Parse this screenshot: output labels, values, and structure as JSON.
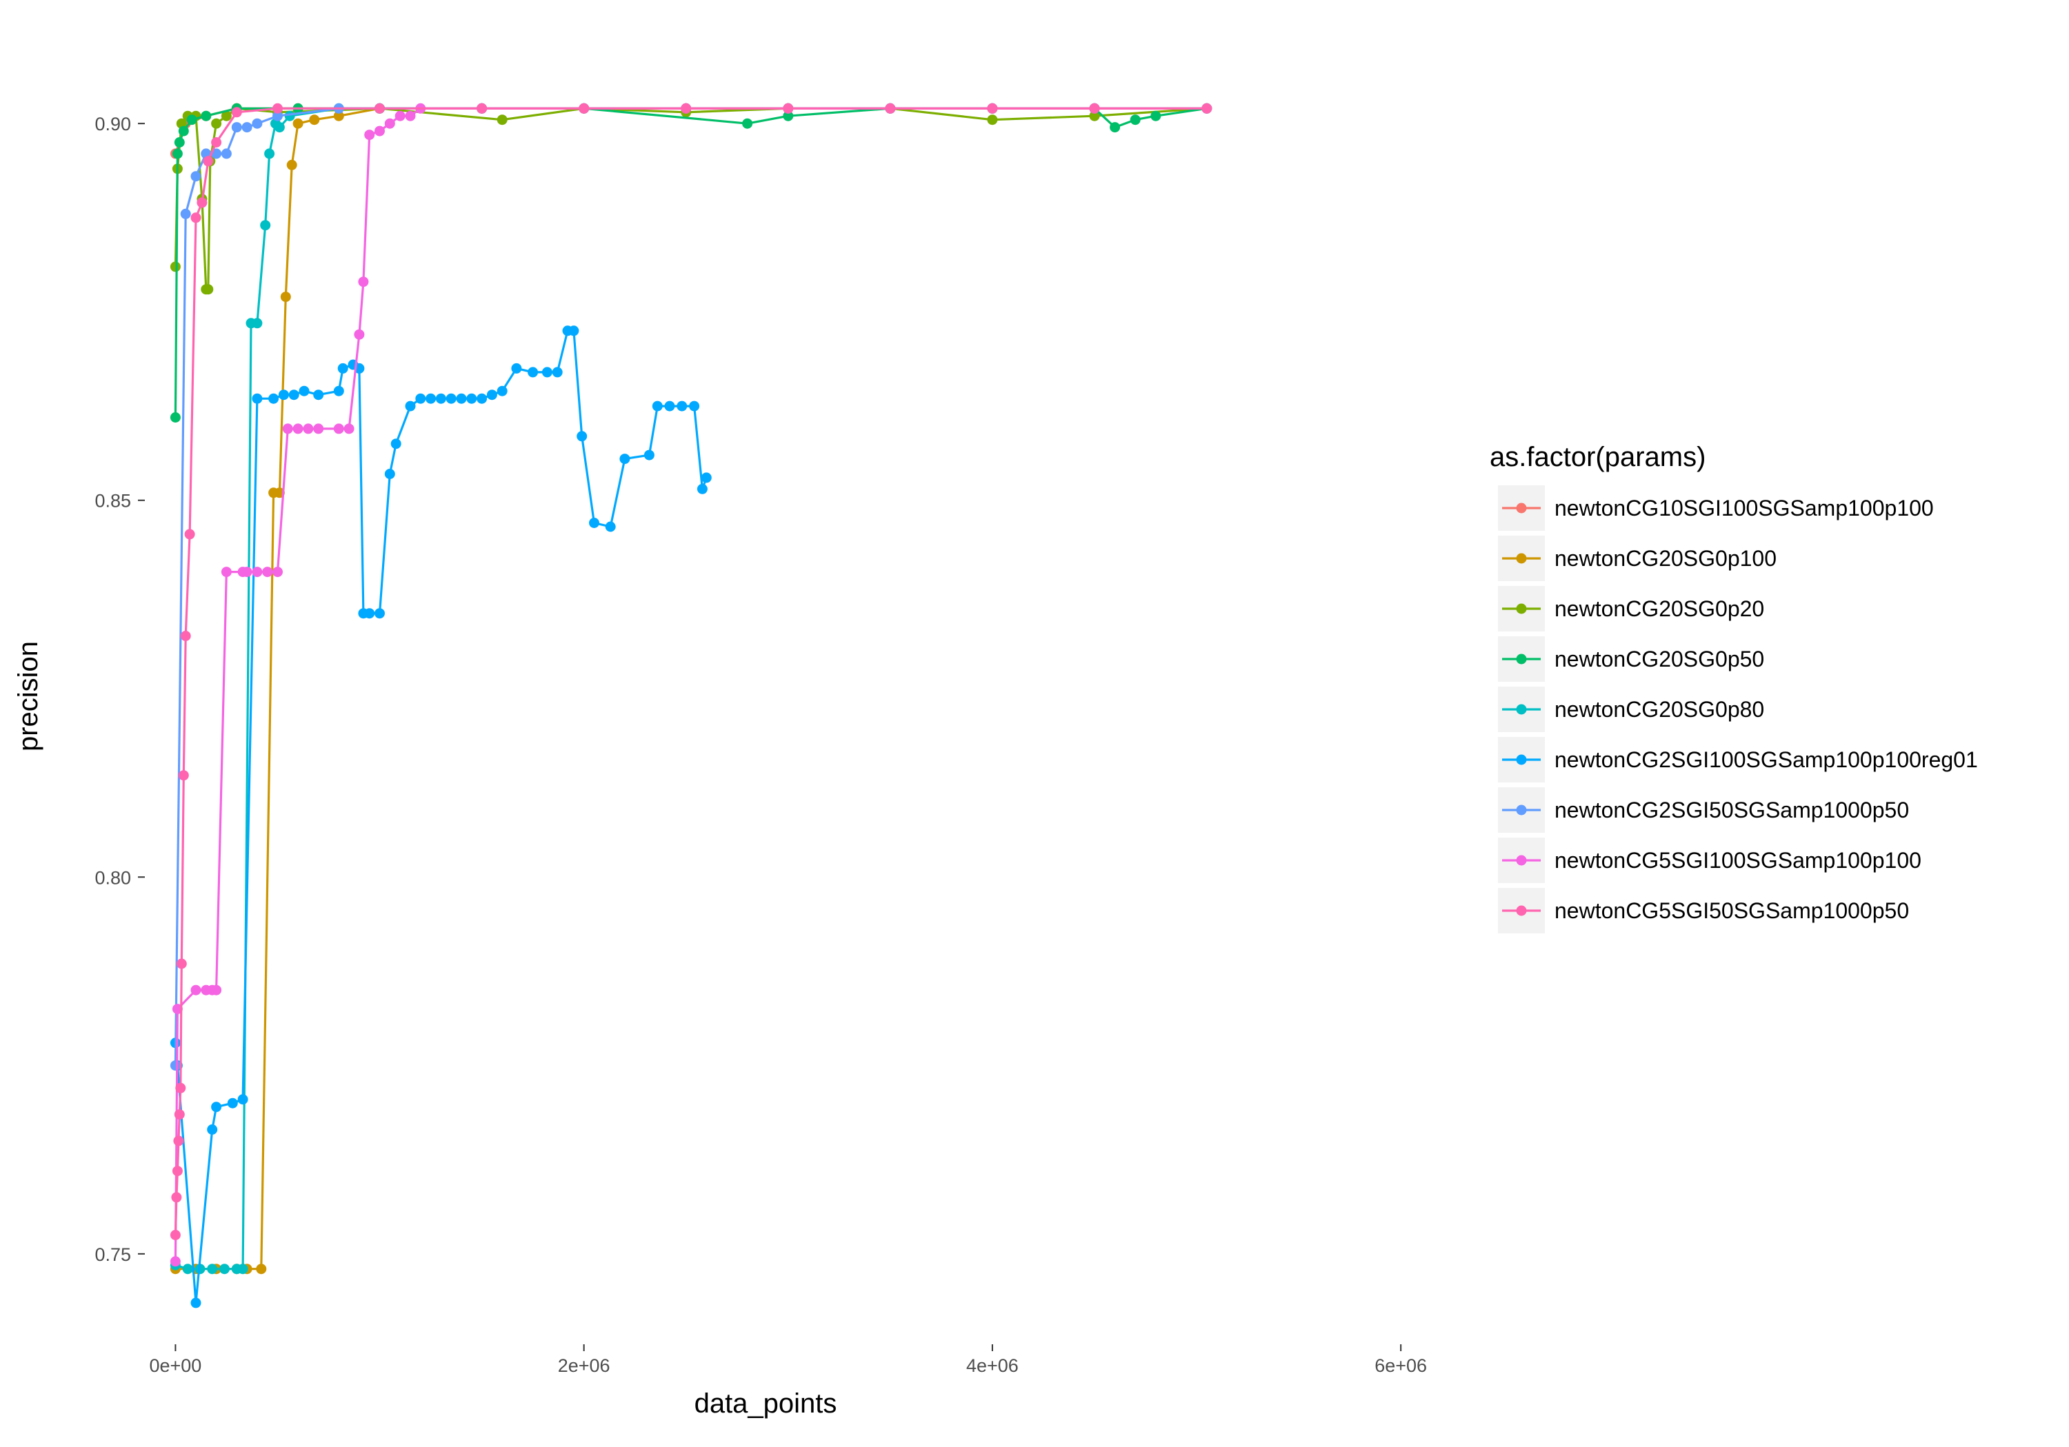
{
  "chart_data": {
    "type": "line",
    "xlabel": "data_points",
    "ylabel": "precision",
    "xlim": [
      -150000,
      6300000
    ],
    "ylim": [
      0.738,
      0.912
    ],
    "xticks": [
      0,
      2000000,
      4000000,
      6000000
    ],
    "xtick_labels": [
      "0e+00",
      "2e+06",
      "4e+06",
      "6e+06"
    ],
    "yticks": [
      0.75,
      0.8,
      0.85,
      0.9
    ],
    "ytick_labels": [
      "0.75",
      "0.80",
      "0.85",
      "0.90"
    ],
    "grid": false,
    "legend": {
      "title": "as.factor(params)",
      "position": "right"
    },
    "series": [
      {
        "name": "newtonCG10SGI100SGSamp100p100",
        "color": "#F8766D",
        "x": [
          0,
          50000,
          150000,
          300000,
          600000,
          1000000,
          1500000,
          2000000,
          2500000,
          3000000,
          3500000,
          4000000,
          4500000,
          5050000
        ],
        "y": [
          0.896,
          0.9,
          0.901,
          0.902,
          0.902,
          0.902,
          0.902,
          0.902,
          0.902,
          0.902,
          0.902,
          0.902,
          0.902,
          0.902
        ]
      },
      {
        "name": "newtonCG20SG0p100",
        "color": "#CD9600",
        "x": [
          0,
          100000,
          200000,
          300000,
          350000,
          420000,
          480000,
          510000,
          540000,
          570000,
          600000,
          680000,
          800000,
          1000000,
          1500000,
          2000000,
          2500000,
          3000000,
          3500000,
          4000000,
          4500000,
          5050000
        ],
        "y": [
          0.748,
          0.748,
          0.748,
          0.748,
          0.748,
          0.748,
          0.851,
          0.851,
          0.877,
          0.8945,
          0.9,
          0.9005,
          0.901,
          0.902,
          0.902,
          0.902,
          0.902,
          0.902,
          0.902,
          0.902,
          0.902,
          0.902
        ]
      },
      {
        "name": "newtonCG20SG0p20",
        "color": "#7CAE00",
        "x": [
          0,
          10000,
          30000,
          60000,
          100000,
          130000,
          150000,
          160000,
          170000,
          200000,
          250000,
          300000,
          500000,
          1000000,
          1600000,
          2000000,
          2500000,
          3000000,
          3500000,
          4000000,
          4500000,
          5050000
        ],
        "y": [
          0.881,
          0.894,
          0.9,
          0.901,
          0.901,
          0.89,
          0.878,
          0.878,
          0.895,
          0.9,
          0.901,
          0.902,
          0.9015,
          0.902,
          0.9005,
          0.902,
          0.9015,
          0.902,
          0.902,
          0.9005,
          0.901,
          0.902
        ]
      },
      {
        "name": "newtonCG20SG0p50",
        "color": "#00BE67",
        "x": [
          0,
          10000,
          20000,
          40000,
          80000,
          150000,
          300000,
          600000,
          1000000,
          1500000,
          2000000,
          2800000,
          3000000,
          3500000,
          4000000,
          4500000,
          4600000,
          4700000,
          4800000,
          5050000
        ],
        "y": [
          0.861,
          0.896,
          0.8975,
          0.899,
          0.9005,
          0.901,
          0.902,
          0.902,
          0.902,
          0.902,
          0.902,
          0.9,
          0.901,
          0.902,
          0.902,
          0.902,
          0.8995,
          0.9005,
          0.901,
          0.902
        ]
      },
      {
        "name": "newtonCG20SG0p80",
        "color": "#00BFC4",
        "x": [
          0,
          60000,
          120000,
          180000,
          240000,
          300000,
          330000,
          370000,
          400000,
          440000,
          460000,
          490000,
          510000,
          560000,
          800000,
          1000000,
          1500000,
          2000000,
          2500000,
          3000000,
          3500000,
          4000000,
          4500000,
          5050000
        ],
        "y": [
          0.7485,
          0.748,
          0.748,
          0.748,
          0.748,
          0.748,
          0.748,
          0.8735,
          0.8735,
          0.8865,
          0.896,
          0.9,
          0.8995,
          0.901,
          0.902,
          0.902,
          0.902,
          0.902,
          0.902,
          0.902,
          0.902,
          0.902,
          0.902,
          0.902
        ]
      },
      {
        "name": "newtonCG2SGI100SGSamp100p100reg01",
        "color": "#00A9FF",
        "x": [
          0,
          10000,
          100000,
          180000,
          200000,
          280000,
          330000,
          400000,
          480000,
          530000,
          580000,
          630000,
          700000,
          800000,
          820000,
          870000,
          900000,
          920000,
          950000,
          1000000,
          1050000,
          1080000,
          1150000,
          1200000,
          1250000,
          1300000,
          1350000,
          1400000,
          1450000,
          1500000,
          1550000,
          1600000,
          1670000,
          1750000,
          1820000,
          1870000,
          1920000,
          1950000,
          1990000,
          2050000,
          2130000,
          2200000,
          2320000,
          2360000,
          2420000,
          2480000,
          2540000,
          2580000,
          2600000
        ],
        "y": [
          0.778,
          0.775,
          0.7435,
          0.7665,
          0.7695,
          0.77,
          0.7705,
          0.8635,
          0.8635,
          0.864,
          0.864,
          0.8645,
          0.864,
          0.8645,
          0.8675,
          0.868,
          0.8675,
          0.835,
          0.835,
          0.835,
          0.8535,
          0.8575,
          0.8625,
          0.8635,
          0.8635,
          0.8635,
          0.8635,
          0.8635,
          0.8635,
          0.8635,
          0.864,
          0.8645,
          0.8675,
          0.867,
          0.867,
          0.867,
          0.8725,
          0.8725,
          0.8585,
          0.847,
          0.8465,
          0.8555,
          0.856,
          0.8625,
          0.8625,
          0.8625,
          0.8625,
          0.8515,
          0.853
        ]
      },
      {
        "name": "newtonCG2SGI50SGSamp1000p50",
        "color": "#619CFF",
        "x": [
          0,
          50000,
          100000,
          150000,
          200000,
          250000,
          300000,
          350000,
          400000,
          500000,
          800000,
          1000000,
          1500000,
          2000000,
          2500000,
          3000000,
          3500000,
          4000000,
          4500000,
          5050000
        ],
        "y": [
          0.775,
          0.888,
          0.893,
          0.896,
          0.896,
          0.896,
          0.8995,
          0.8995,
          0.9,
          0.901,
          0.902,
          0.902,
          0.902,
          0.902,
          0.902,
          0.902,
          0.902,
          0.902,
          0.902,
          0.902
        ]
      },
      {
        "name": "newtonCG5SGI100SGSamp100p100",
        "color": "#F564E3",
        "x": [
          0,
          10000,
          100000,
          150000,
          180000,
          200000,
          250000,
          330000,
          350000,
          400000,
          450000,
          500000,
          550000,
          600000,
          650000,
          700000,
          800000,
          850000,
          900000,
          920000,
          950000,
          1000000,
          1050000,
          1100000,
          1150000,
          1200000,
          1500000,
          2000000,
          2500000,
          3000000,
          3500000,
          4000000,
          4500000,
          5050000
        ],
        "y": [
          0.749,
          0.7825,
          0.785,
          0.785,
          0.785,
          0.785,
          0.8405,
          0.8405,
          0.8405,
          0.8405,
          0.8405,
          0.8405,
          0.8595,
          0.8595,
          0.8595,
          0.8595,
          0.8595,
          0.8595,
          0.872,
          0.879,
          0.8985,
          0.899,
          0.9,
          0.901,
          0.901,
          0.902,
          0.902,
          0.902,
          0.902,
          0.902,
          0.902,
          0.902,
          0.902,
          0.902
        ]
      },
      {
        "name": "newtonCG5SGI50SGSamp1000p50",
        "color": "#FF64B0",
        "x": [
          0,
          5000,
          10000,
          15000,
          20000,
          25000,
          30000,
          40000,
          50000,
          70000,
          100000,
          130000,
          160000,
          200000,
          300000,
          500000,
          1000000,
          1500000,
          2000000,
          2500000,
          3000000,
          3500000,
          4000000,
          4500000,
          5050000
        ],
        "y": [
          0.7525,
          0.7575,
          0.761,
          0.765,
          0.7685,
          0.772,
          0.7885,
          0.8135,
          0.832,
          0.8455,
          0.8875,
          0.8895,
          0.895,
          0.8975,
          0.9015,
          0.902,
          0.902,
          0.902,
          0.902,
          0.902,
          0.902,
          0.902,
          0.902,
          0.902,
          0.902
        ]
      }
    ]
  }
}
